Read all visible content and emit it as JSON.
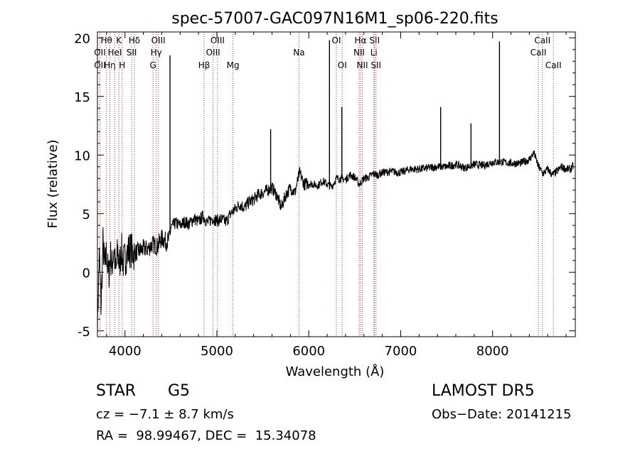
{
  "chart_data": {
    "type": "line",
    "title": "spec-57007-GAC097N16M1_sp06-220.fits",
    "xlabel": "Wavelength (Å)",
    "ylabel": "Flux (relative)",
    "xlim": [
      3700,
      8900
    ],
    "ylim": [
      -5.5,
      20.5
    ],
    "xticks": [
      4000,
      5000,
      6000,
      7000,
      8000
    ],
    "yticks": [
      -5,
      0,
      5,
      10,
      15,
      20
    ],
    "grid": false,
    "line_color": "#000000",
    "marker_color": "#cc3333",
    "series": [
      {
        "x": [
          3700,
          3720,
          3740,
          3760,
          3780,
          3800,
          3820,
          3840,
          3860,
          3880,
          3900,
          3920,
          3940,
          3960,
          3980,
          4000,
          4050,
          4100,
          4150,
          4200,
          4250,
          4300,
          4350,
          4400,
          4450,
          4480,
          4500,
          4550,
          4600,
          4650,
          4700,
          4750,
          4800,
          4850,
          4900,
          4950,
          5000,
          5050,
          5100,
          5150,
          5200,
          5250,
          5300,
          5350,
          5400,
          5450,
          5500,
          5550,
          5600,
          5650,
          5700,
          5750,
          5800,
          5850,
          5900,
          5950,
          6000,
          6050,
          6100,
          6150,
          6200,
          6250,
          6300,
          6350,
          6400,
          6450,
          6500,
          6550,
          6600,
          6650,
          6700,
          6750,
          6800,
          6900,
          7000,
          7100,
          7200,
          7300,
          7400,
          7500,
          7600,
          7700,
          7800,
          7900,
          8000,
          8100,
          8200,
          8300,
          8400,
          8450,
          8500,
          8550,
          8600,
          8650,
          8700,
          8750,
          8800,
          8850,
          8880
        ],
        "y": [
          -4.5,
          1.5,
          -3.0,
          2.5,
          0.3,
          1.8,
          -0.5,
          1.5,
          0.5,
          2.2,
          -0.2,
          1.8,
          0.5,
          2.0,
          0.8,
          1.2,
          2.0,
          1.6,
          1.8,
          2.0,
          2.0,
          2.4,
          2.2,
          2.9,
          2.6,
          2.8,
          3.8,
          4.2,
          4.0,
          4.3,
          4.1,
          4.6,
          4.3,
          4.8,
          4.2,
          4.6,
          4.4,
          4.5,
          4.3,
          5.0,
          5.4,
          5.8,
          5.5,
          6.0,
          6.2,
          6.6,
          6.8,
          7.0,
          7.2,
          6.6,
          5.5,
          6.6,
          7.2,
          6.8,
          8.5,
          7.5,
          7.6,
          7.5,
          7.4,
          7.8,
          7.5,
          7.3,
          8.0,
          8.0,
          7.9,
          8.3,
          8.1,
          7.5,
          8.0,
          8.1,
          8.4,
          8.3,
          8.5,
          8.6,
          8.5,
          8.8,
          8.8,
          8.9,
          9.0,
          9.0,
          9.2,
          8.9,
          9.2,
          9.1,
          9.4,
          9.4,
          9.3,
          9.3,
          9.6,
          10.2,
          9.0,
          8.4,
          8.8,
          8.3,
          8.6,
          9.0,
          8.8,
          8.8,
          9.1
        ]
      }
    ],
    "line_markers": [
      {
        "label": "Hθ",
        "x": 3798,
        "row": 0
      },
      {
        "label": "OII",
        "x": 3727,
        "row": 1
      },
      {
        "label": "OII",
        "x": 3727,
        "row": 2
      },
      {
        "label": "Hη",
        "x": 3835,
        "row": 2
      },
      {
        "label": "K",
        "x": 3934,
        "row": 0
      },
      {
        "label": "HeI",
        "x": 3889,
        "row": 1
      },
      {
        "label": "H",
        "x": 3969,
        "row": 2
      },
      {
        "label": "Hδ",
        "x": 4102,
        "row": 0
      },
      {
        "label": "SII",
        "x": 4072,
        "row": 1
      },
      {
        "label": "OIII",
        "x": 4363,
        "row": 0
      },
      {
        "label": "Hγ",
        "x": 4340,
        "row": 1
      },
      {
        "label": "G",
        "x": 4305,
        "row": 2
      },
      {
        "label": "OIII",
        "x": 5007,
        "row": 0
      },
      {
        "label": "OIII",
        "x": 4959,
        "row": 1
      },
      {
        "label": "Hβ",
        "x": 4861,
        "row": 2
      },
      {
        "label": "Mg",
        "x": 5175,
        "row": 2
      },
      {
        "label": "Na",
        "x": 5893,
        "row": 1
      },
      {
        "label": "OI",
        "x": 6300,
        "row": 0
      },
      {
        "label": "OI",
        "x": 6364,
        "row": 2
      },
      {
        "label": "Hα",
        "x": 6563,
        "row": 0
      },
      {
        "label": "SII",
        "x": 6716,
        "row": 0
      },
      {
        "label": "NII",
        "x": 6548,
        "row": 1
      },
      {
        "label": "Li",
        "x": 6708,
        "row": 1
      },
      {
        "label": "NII",
        "x": 6583,
        "row": 2
      },
      {
        "label": "SII",
        "x": 6731,
        "row": 2
      },
      {
        "label": "CaII",
        "x": 8542,
        "row": 0
      },
      {
        "label": "CaII",
        "x": 8498,
        "row": 1
      },
      {
        "label": "CaII",
        "x": 8662,
        "row": 2
      }
    ],
    "emission_spikes": [
      {
        "x": 4490,
        "y": 18.5
      },
      {
        "x": 5585,
        "y": 12.2
      },
      {
        "x": 6225,
        "y": 19.8
      },
      {
        "x": 6360,
        "y": 14.1
      },
      {
        "x": 7435,
        "y": 14.1
      },
      {
        "x": 7765,
        "y": 12.7
      },
      {
        "x": 8075,
        "y": 19.7
      }
    ]
  },
  "info": {
    "object_type": "STAR",
    "subclass": "G5",
    "survey": "LAMOST DR5",
    "cz_line": "cz = −7.1 ± 8.7 km/s",
    "obs_date": "Obs−Date: 20141215",
    "coords": "RA =  98.99467, DEC =  15.34078"
  }
}
